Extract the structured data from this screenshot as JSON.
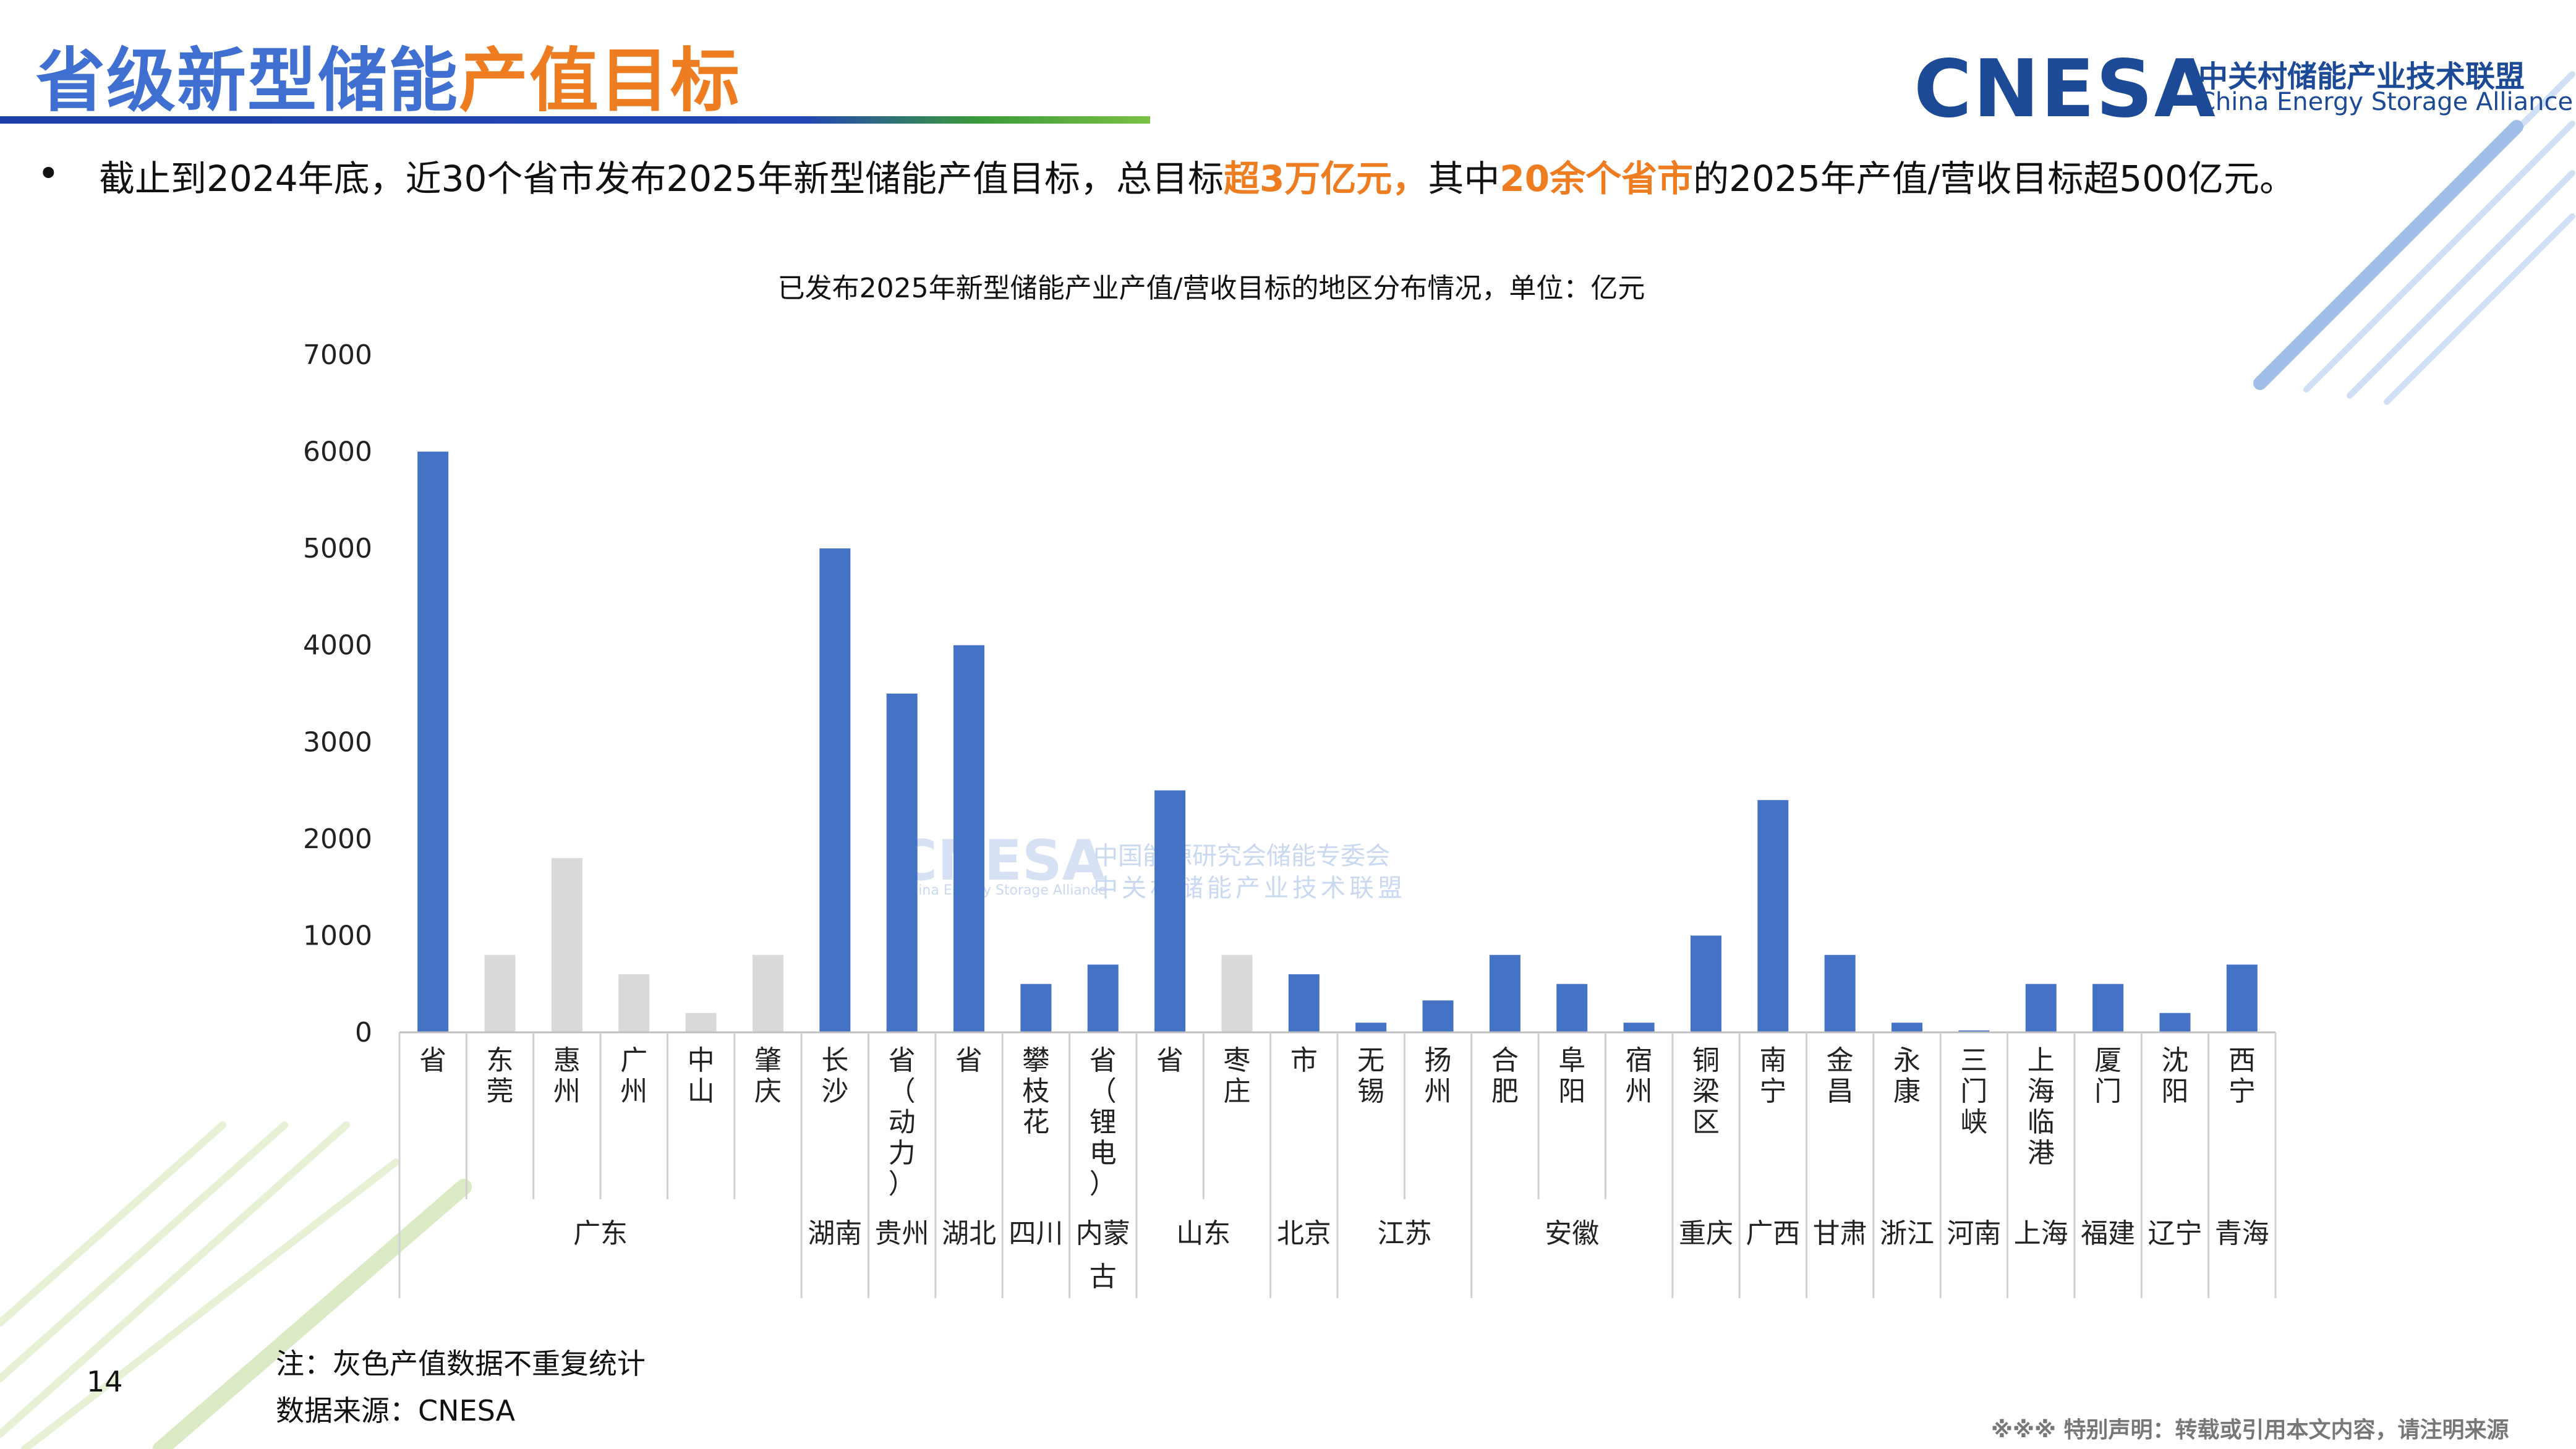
{
  "header": {
    "title_part1": "省级新型储能",
    "title_part2": "产值目标",
    "logo_text": "CNESA",
    "logo_cn": "中关村储能产业技术联盟",
    "logo_en": "China Energy Storage Alliance"
  },
  "summary": {
    "bullet": "•",
    "p1": "截止到2024年底，近30个省市发布2025年新型储能产值目标，总目标",
    "h1": "超3万亿元，",
    "p2": "其中",
    "h2": "20余个省市",
    "p3": "的2025年产值/营收目标超500亿元。"
  },
  "watermark": {
    "en": "CNESA",
    "cn1": "中国能源研究会储能专委会",
    "cn2": "中关村储能产业技术联盟",
    "en2": "China Energy Storage Alliance"
  },
  "colors": {
    "primary": "#4472c4",
    "secondary": "#d9d9d9",
    "accent": "#ee7d22"
  },
  "chart_data": {
    "type": "bar",
    "title": "已发布2025年新型储能产业产值/营收目标的地区分布情况，单位：亿元",
    "ylim": [
      0,
      7000
    ],
    "yticks": [
      "0",
      "1000",
      "2000",
      "3000",
      "4000",
      "5000",
      "6000",
      "7000"
    ],
    "grid": false,
    "categories": [
      "省",
      "东莞",
      "惠州",
      "广州",
      "中山",
      "肇庆",
      "长沙",
      "省（动力）",
      "省",
      "攀枝花",
      "省（锂电）",
      "省",
      "枣庄",
      "市",
      "无锡",
      "扬州",
      "合肥",
      "阜阳",
      "宿州",
      "铜梁区",
      "南宁",
      "金昌",
      "永康",
      "三门峡",
      "上海临港",
      "厦门",
      "沈阳",
      "西宁"
    ],
    "values": [
      6000,
      800,
      1800,
      600,
      200,
      800,
      5000,
      3500,
      4000,
      500,
      700,
      2500,
      800,
      600,
      100,
      330,
      800,
      500,
      100,
      1000,
      2400,
      800,
      100,
      20,
      500,
      500,
      200,
      700
    ],
    "gray": [
      false,
      true,
      true,
      true,
      true,
      true,
      false,
      false,
      false,
      false,
      false,
      false,
      true,
      false,
      false,
      false,
      false,
      false,
      false,
      false,
      false,
      false,
      false,
      false,
      false,
      false,
      false,
      false
    ],
    "groups": [
      {
        "name": "广东",
        "count": 6
      },
      {
        "name": "湖南",
        "count": 1
      },
      {
        "name": "贵州",
        "count": 1
      },
      {
        "name": "湖北",
        "count": 1
      },
      {
        "name": "四川",
        "count": 1
      },
      {
        "name": "内蒙古",
        "count": 1
      },
      {
        "name": "山东",
        "count": 2
      },
      {
        "name": "北京",
        "count": 1
      },
      {
        "name": "江苏",
        "count": 2
      },
      {
        "name": "安徽",
        "count": 3
      },
      {
        "name": "重庆",
        "count": 1
      },
      {
        "name": "广西",
        "count": 1
      },
      {
        "name": "甘肃",
        "count": 1
      },
      {
        "name": "浙江",
        "count": 1
      },
      {
        "name": "河南",
        "count": 1
      },
      {
        "name": "上海",
        "count": 1
      },
      {
        "name": "福建",
        "count": 1
      },
      {
        "name": "辽宁",
        "count": 1
      },
      {
        "name": "青海",
        "count": 1
      }
    ]
  },
  "footer": {
    "note": "注：灰色产值数据不重复统计",
    "source": "数据来源：CNESA",
    "page_number": "14",
    "disclaimer": "※※※ 特别声明：转载或引用本文内容，请注明来源"
  }
}
